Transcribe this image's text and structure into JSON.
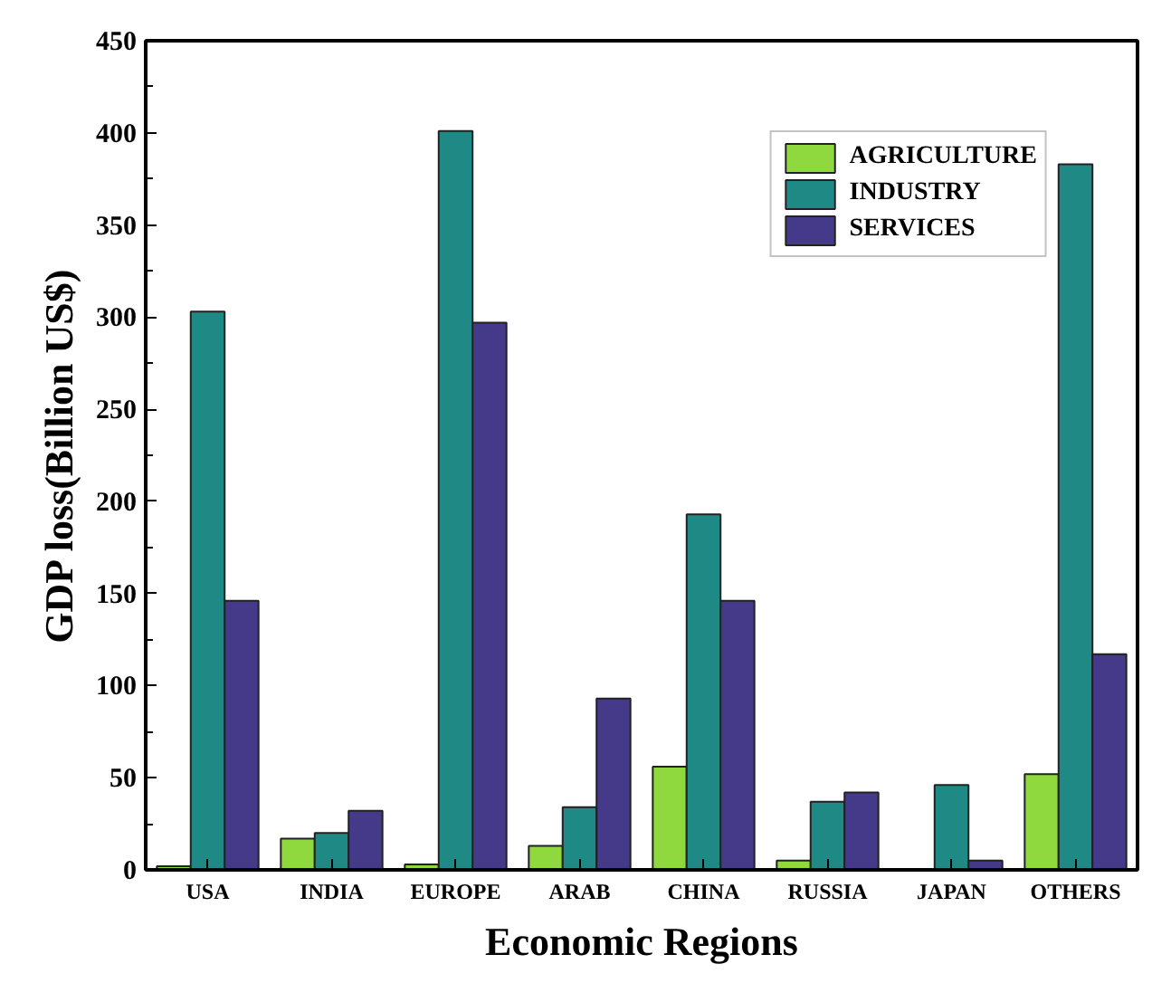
{
  "chart_data": {
    "type": "bar",
    "xlabel": "Economic Regions",
    "ylabel": "GDP loss(Billion US$)",
    "categories": [
      "USA",
      "INDIA",
      "EUROPE",
      "ARAB",
      "CHINA",
      "RUSSIA",
      "JAPAN",
      "OTHERS"
    ],
    "series": [
      {
        "name": "AGRICULTURE",
        "color": "#8fd83e",
        "values": [
          2,
          17,
          3,
          13,
          56,
          5,
          null,
          52
        ]
      },
      {
        "name": "INDUSTRY",
        "color": "#1f8a85",
        "values": [
          303,
          20,
          401,
          34,
          193,
          37,
          46,
          383
        ]
      },
      {
        "name": "SERVICES",
        "color": "#45398a",
        "values": [
          146,
          32,
          297,
          93,
          146,
          42,
          5,
          117
        ]
      }
    ],
    "ylim": [
      0,
      450
    ],
    "yticks": [
      0,
      50,
      100,
      150,
      200,
      250,
      300,
      350,
      400,
      450
    ],
    "grid": false,
    "legend": "top right"
  }
}
